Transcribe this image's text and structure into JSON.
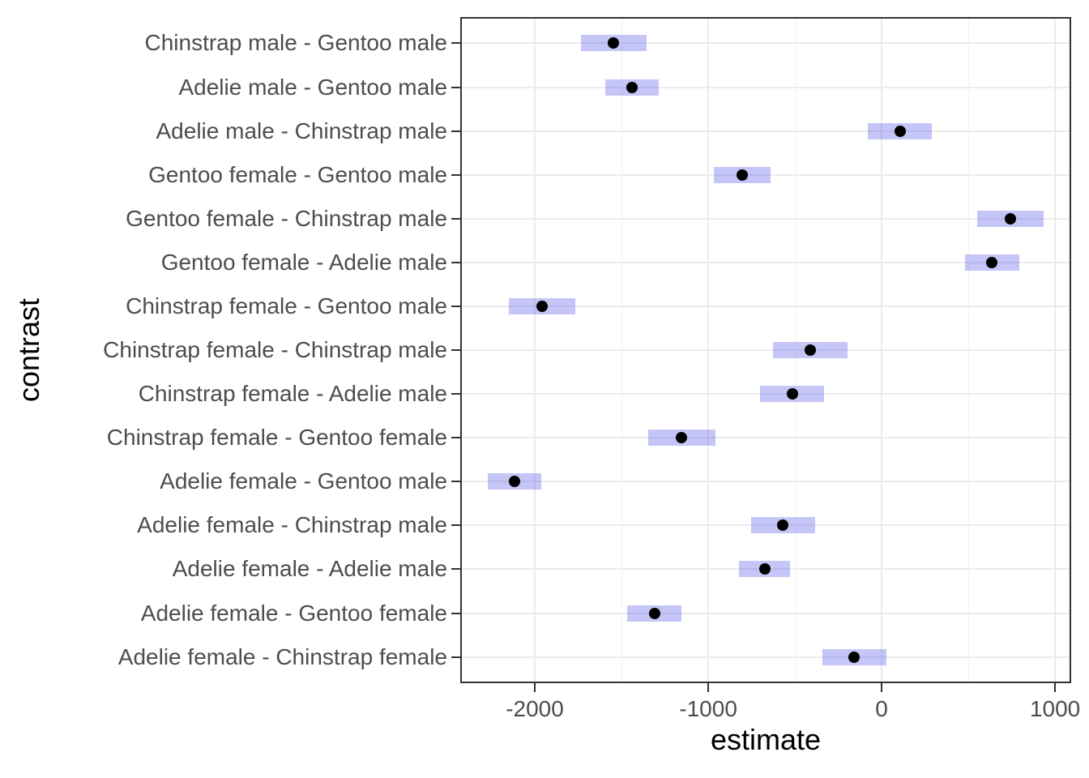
{
  "figure": {
    "background": "#ffffff",
    "panel_border_color": "#333333",
    "grid_major_color": "#ebebeb",
    "grid_minor_color": "#f2f2f2",
    "interval_fill": "rgba(64,64,232,0.30)",
    "interval_fill_hint": "#bdbdf2",
    "point_color": "#000000",
    "axis_text_color": "#4d4d4d",
    "axis_title_color": "#000000"
  },
  "chart_data": {
    "type": "scatter",
    "style": "horizontal point-interval plot (estimate dot with confidence band per category)",
    "title": "",
    "xlabel": "estimate",
    "ylabel": "contrast",
    "xlim": [
      -2430,
      1093
    ],
    "x_major_ticks": [
      -2000,
      -1000,
      0,
      1000
    ],
    "x_major_tick_labels": [
      "-2000",
      "-1000",
      "0",
      "1000"
    ],
    "x_minor_gridlines": [
      -1500,
      -500,
      500
    ],
    "grid": true,
    "legend": false,
    "rows": [
      {
        "label": "Chinstrap male - Gentoo male",
        "estimate": -1546,
        "lower": -1736,
        "upper": -1356
      },
      {
        "label": "Adelie male - Gentoo male",
        "estimate": -1441,
        "lower": -1596,
        "upper": -1287
      },
      {
        "label": "Adelie male - Chinstrap male",
        "estimate": 105,
        "lower": -80,
        "upper": 289
      },
      {
        "label": "Gentoo female - Gentoo male",
        "estimate": -805,
        "lower": -968,
        "upper": -642
      },
      {
        "label": "Gentoo female - Chinstrap male",
        "estimate": 741,
        "lower": 549,
        "upper": 933
      },
      {
        "label": "Gentoo female - Adelie male",
        "estimate": 636,
        "lower": 480,
        "upper": 793
      },
      {
        "label": "Chinstrap female - Gentoo male",
        "estimate": -1958,
        "lower": -2148,
        "upper": -1768
      },
      {
        "label": "Chinstrap female - Chinstrap male",
        "estimate": -412,
        "lower": -628,
        "upper": -196
      },
      {
        "label": "Chinstrap female - Adelie male",
        "estimate": -516,
        "lower": -701,
        "upper": -331
      },
      {
        "label": "Chinstrap female - Gentoo female",
        "estimate": -1153,
        "lower": -1345,
        "upper": -960
      },
      {
        "label": "Adelie female - Gentoo male",
        "estimate": -2116,
        "lower": -2270,
        "upper": -1962
      },
      {
        "label": "Adelie female - Chinstrap male",
        "estimate": -570,
        "lower": -755,
        "upper": -385
      },
      {
        "label": "Adelie female - Adelie male",
        "estimate": -675,
        "lower": -822,
        "upper": -527
      },
      {
        "label": "Adelie female - Gentoo female",
        "estimate": -1311,
        "lower": -1467,
        "upper": -1155
      },
      {
        "label": "Adelie female - Chinstrap female",
        "estimate": -158,
        "lower": -343,
        "upper": 26
      }
    ]
  }
}
